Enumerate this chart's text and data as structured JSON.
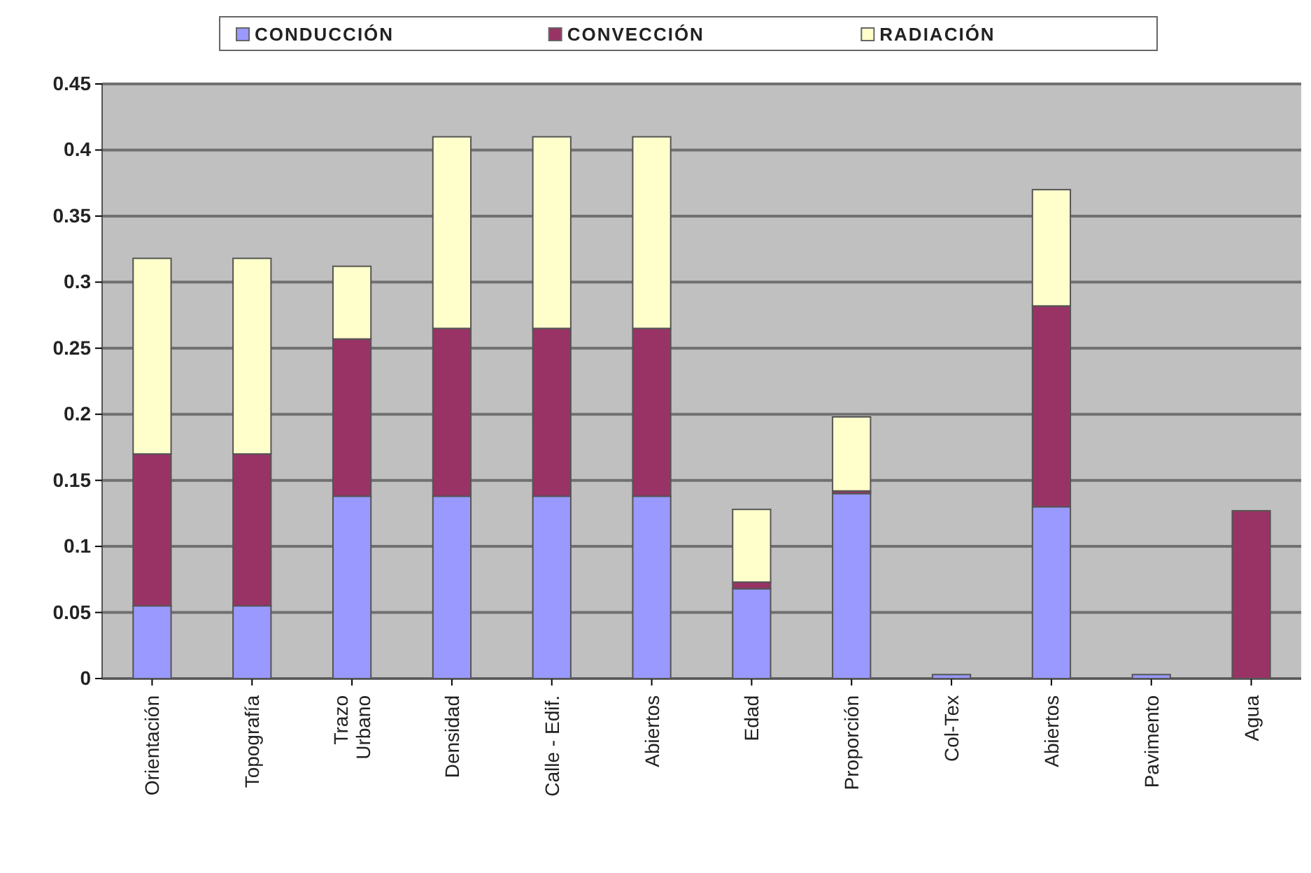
{
  "chart_data": {
    "type": "bar",
    "stacked": true,
    "categories": [
      "Orientación",
      "Topografía",
      "Trazo\nUrbano",
      "Densidad",
      "Calle - Edif.",
      "Abiertos",
      "Edad",
      "Proporción",
      "Col-Tex",
      "Abiertos",
      "Pavimento",
      "Agua"
    ],
    "series": [
      {
        "name": "CONDUCCIÓN",
        "color": "#9999ff",
        "values": [
          0.055,
          0.055,
          0.138,
          0.138,
          0.138,
          0.138,
          0.068,
          0.14,
          0.003,
          0.13,
          0.003,
          0
        ]
      },
      {
        "name": "CONVECCIÓN",
        "color": "#993366",
        "values": [
          0.115,
          0.115,
          0.119,
          0.127,
          0.127,
          0.127,
          0.005,
          0.002,
          0,
          0.152,
          0,
          0.127
        ]
      },
      {
        "name": "RADIACIÓN",
        "color": "#ffffcc",
        "values": [
          0.148,
          0.148,
          0.055,
          0.145,
          0.145,
          0.145,
          0.055,
          0.056,
          0,
          0.088,
          0,
          0
        ]
      }
    ],
    "ylim": [
      0,
      0.45
    ],
    "yticks": [
      0,
      0.05,
      0.1,
      0.15,
      0.2,
      0.25,
      0.3,
      0.35,
      0.4,
      0.45
    ],
    "grid": "y",
    "legend": "top"
  }
}
